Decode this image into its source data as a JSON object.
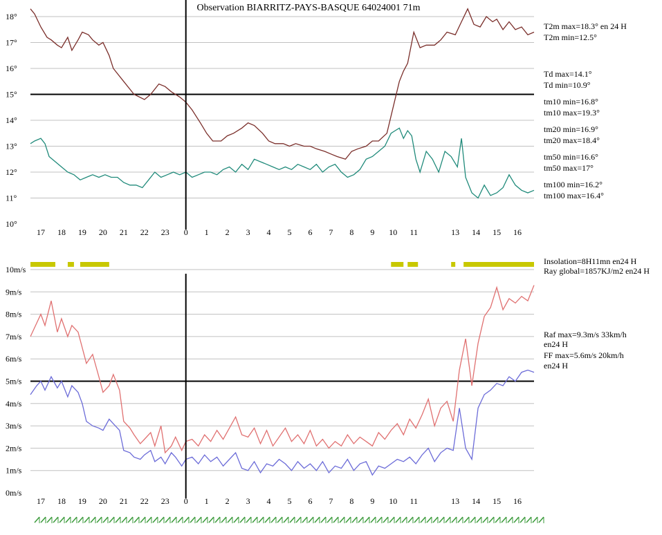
{
  "title": "Observation BIARRITZ-PAYS-BASQUE 64024001 71m",
  "colors": {
    "temperature": "#7a2e2a",
    "dewpoint": "#1f8a7a",
    "gust": "#e07070",
    "wind": "#6b6bd8",
    "insolation": "#c8c800",
    "grid": "#c0c0c0",
    "wind_barbs": "#3a9a3a"
  },
  "top_info": [
    "T2m max=18.3° en 24 H",
    "T2m min=12.5°",
    "Td max=14.1°",
    "Td min=10.9°",
    "tm10 min=16.8°",
    "tm10 max=19.3°",
    "tm20 min=16.9°",
    "tm20 max=18.4°",
    "tm50 min=16.6°",
    "tm50 max=17°",
    "tm100 min=16.2°",
    "tm100 max=16.4°"
  ],
  "bottom_info": [
    "Insolation=8H11mn en24 H",
    "Ray global=1857KJ/m2 en24 H",
    "Raf max=9.3m/s 33km/h",
    "en24 H",
    "FF max=5.6m/s 20km/h",
    "en24 H"
  ],
  "chart_data": [
    {
      "type": "line",
      "title": "Observation BIARRITZ-PAYS-BASQUE 64024001 71m",
      "y_ticks": [
        "10°",
        "11°",
        "12°",
        "13°",
        "14°",
        "15°",
        "16°",
        "17°",
        "18°"
      ],
      "ylim": [
        10,
        18
      ],
      "x_ticks": [
        "17",
        "18",
        "19",
        "20",
        "21",
        "22",
        "23",
        "0",
        "1",
        "2",
        "3",
        "4",
        "5",
        "6",
        "7",
        "8",
        "9",
        "10",
        "11",
        "13",
        "14",
        "15",
        "16"
      ],
      "x_tick_hours": [
        -7,
        -6,
        -5,
        -4,
        -3,
        -2,
        -1,
        0,
        1,
        2,
        3,
        4,
        5,
        6,
        7,
        8,
        9,
        10,
        11,
        13,
        14,
        15,
        16
      ],
      "x_range_hours": [
        -7.5,
        16.8
      ],
      "reference_line": 15,
      "series": [
        {
          "key": "temperature",
          "x": [
            -7.5,
            -7.3,
            -7.0,
            -6.7,
            -6.5,
            -6.2,
            -6.0,
            -5.7,
            -5.5,
            -5.2,
            -5.0,
            -4.7,
            -4.5,
            -4.2,
            -4.0,
            -3.7,
            -3.5,
            -3.0,
            -2.5,
            -2.0,
            -1.7,
            -1.3,
            -1.0,
            -0.7,
            -0.3,
            0.0,
            0.3,
            0.7,
            1.0,
            1.3,
            1.7,
            2.0,
            2.3,
            2.7,
            3.0,
            3.3,
            3.7,
            4.0,
            4.3,
            4.7,
            5.0,
            5.3,
            5.7,
            6.0,
            6.3,
            6.7,
            7.0,
            7.3,
            7.7,
            8.0,
            8.3,
            8.7,
            9.0,
            9.3,
            9.7,
            10.0,
            10.3,
            10.5,
            10.7,
            11.0,
            11.3,
            11.6,
            12.0,
            12.3,
            12.6,
            13.0,
            13.3,
            13.6,
            13.9,
            14.2,
            14.5,
            14.8,
            15.0,
            15.3,
            15.6,
            15.9,
            16.2,
            16.5,
            16.8
          ],
          "y": [
            18.3,
            18.1,
            17.6,
            17.2,
            17.1,
            16.9,
            16.8,
            17.2,
            16.7,
            17.1,
            17.4,
            17.3,
            17.1,
            16.9,
            17.0,
            16.5,
            16.0,
            15.5,
            15.0,
            14.8,
            15.0,
            15.4,
            15.3,
            15.1,
            14.9,
            14.7,
            14.4,
            13.9,
            13.5,
            13.2,
            13.2,
            13.4,
            13.5,
            13.7,
            13.9,
            13.8,
            13.5,
            13.2,
            13.1,
            13.1,
            13.0,
            13.1,
            13.0,
            13.0,
            12.9,
            12.8,
            12.7,
            12.6,
            12.5,
            12.8,
            12.9,
            13.0,
            13.2,
            13.2,
            13.5,
            14.5,
            15.5,
            15.9,
            16.2,
            17.4,
            16.8,
            16.9,
            16.9,
            17.1,
            17.4,
            17.3,
            17.8,
            18.3,
            17.7,
            17.6,
            18.0,
            17.8,
            17.9,
            17.5,
            17.8,
            17.5,
            17.6,
            17.3,
            17.4
          ]
        },
        {
          "key": "dewpoint",
          "x": [
            -7.5,
            -7.3,
            -7.0,
            -6.8,
            -6.6,
            -6.3,
            -6.0,
            -5.7,
            -5.4,
            -5.1,
            -4.8,
            -4.5,
            -4.2,
            -3.9,
            -3.6,
            -3.3,
            -3.0,
            -2.7,
            -2.4,
            -2.1,
            -1.8,
            -1.5,
            -1.2,
            -0.9,
            -0.6,
            -0.3,
            0.0,
            0.3,
            0.6,
            0.9,
            1.2,
            1.5,
            1.8,
            2.1,
            2.4,
            2.7,
            3.0,
            3.3,
            3.6,
            3.9,
            4.2,
            4.5,
            4.8,
            5.1,
            5.4,
            5.7,
            6.0,
            6.3,
            6.6,
            6.9,
            7.2,
            7.5,
            7.8,
            8.1,
            8.4,
            8.7,
            9.0,
            9.3,
            9.6,
            9.9,
            10.1,
            10.3,
            10.5,
            10.7,
            10.9,
            11.1,
            11.3,
            11.6,
            11.9,
            12.2,
            12.5,
            12.8,
            13.1,
            13.3,
            13.5,
            13.8,
            14.1,
            14.4,
            14.7,
            15.0,
            15.3,
            15.6,
            15.9,
            16.2,
            16.5,
            16.8
          ],
          "y": [
            13.1,
            13.2,
            13.3,
            13.1,
            12.6,
            12.4,
            12.2,
            12.0,
            11.9,
            11.7,
            11.8,
            11.9,
            11.8,
            11.9,
            11.8,
            11.8,
            11.6,
            11.5,
            11.5,
            11.4,
            11.7,
            12.0,
            11.8,
            11.9,
            12.0,
            11.9,
            12.0,
            11.8,
            11.9,
            12.0,
            12.0,
            11.9,
            12.1,
            12.2,
            12.0,
            12.3,
            12.1,
            12.5,
            12.4,
            12.3,
            12.2,
            12.1,
            12.2,
            12.1,
            12.3,
            12.2,
            12.1,
            12.3,
            12.0,
            12.2,
            12.3,
            12.0,
            11.8,
            11.9,
            12.1,
            12.5,
            12.6,
            12.8,
            13.0,
            13.5,
            13.6,
            13.7,
            13.3,
            13.6,
            13.4,
            12.5,
            12.0,
            12.8,
            12.5,
            12.0,
            12.8,
            12.6,
            12.2,
            13.3,
            11.8,
            11.2,
            11.0,
            11.5,
            11.1,
            11.2,
            11.4,
            11.9,
            11.5,
            11.3,
            11.2,
            11.3
          ]
        }
      ]
    },
    {
      "type": "line",
      "y_ticks": [
        "0m/s",
        "1m/s",
        "2m/s",
        "3m/s",
        "4m/s",
        "5m/s",
        "6m/s",
        "7m/s",
        "8m/s",
        "9m/s",
        "10m/s"
      ],
      "ylim": [
        0,
        10
      ],
      "x_ticks": [
        "17",
        "18",
        "19",
        "20",
        "21",
        "22",
        "23",
        "0",
        "1",
        "2",
        "3",
        "4",
        "5",
        "6",
        "7",
        "8",
        "9",
        "10",
        "11",
        "13",
        "14",
        "15",
        "16"
      ],
      "x_tick_hours": [
        -7,
        -6,
        -5,
        -4,
        -3,
        -2,
        -1,
        0,
        1,
        2,
        3,
        4,
        5,
        6,
        7,
        8,
        9,
        10,
        11,
        13,
        14,
        15,
        16
      ],
      "x_range_hours": [
        -7.5,
        16.8
      ],
      "reference_line": 5,
      "series": [
        {
          "key": "gust",
          "x": [
            -7.5,
            -7.2,
            -7.0,
            -6.8,
            -6.5,
            -6.2,
            -6.0,
            -5.7,
            -5.5,
            -5.2,
            -5.0,
            -4.8,
            -4.5,
            -4.2,
            -4.0,
            -3.7,
            -3.5,
            -3.2,
            -3.0,
            -2.7,
            -2.5,
            -2.2,
            -2.0,
            -1.7,
            -1.5,
            -1.2,
            -1.0,
            -0.7,
            -0.5,
            -0.2,
            0.0,
            0.3,
            0.6,
            0.9,
            1.2,
            1.5,
            1.8,
            2.1,
            2.4,
            2.7,
            3.0,
            3.3,
            3.6,
            3.9,
            4.2,
            4.5,
            4.8,
            5.1,
            5.4,
            5.7,
            6.0,
            6.3,
            6.6,
            6.9,
            7.2,
            7.5,
            7.8,
            8.1,
            8.4,
            8.7,
            9.0,
            9.3,
            9.6,
            9.9,
            10.2,
            10.5,
            10.8,
            11.1,
            11.4,
            11.7,
            12.0,
            12.3,
            12.6,
            12.9,
            13.2,
            13.5,
            13.8,
            14.1,
            14.4,
            14.7,
            15.0,
            15.3,
            15.6,
            15.9,
            16.2,
            16.5,
            16.8
          ],
          "y": [
            7.0,
            7.6,
            8.0,
            7.5,
            8.6,
            7.2,
            7.8,
            7.0,
            7.5,
            7.2,
            6.5,
            5.8,
            6.2,
            5.2,
            4.5,
            4.8,
            5.3,
            4.6,
            3.2,
            2.9,
            2.6,
            2.2,
            2.4,
            2.7,
            2.1,
            3.0,
            1.8,
            2.1,
            2.5,
            1.9,
            2.3,
            2.4,
            2.1,
            2.6,
            2.3,
            2.8,
            2.4,
            2.9,
            3.4,
            2.6,
            2.5,
            2.9,
            2.2,
            2.8,
            2.1,
            2.5,
            2.9,
            2.3,
            2.6,
            2.2,
            2.8,
            2.1,
            2.4,
            2.0,
            2.3,
            2.1,
            2.6,
            2.2,
            2.5,
            2.3,
            2.1,
            2.7,
            2.4,
            2.8,
            3.1,
            2.6,
            3.3,
            2.9,
            3.5,
            4.2,
            3.0,
            3.8,
            4.1,
            3.2,
            5.5,
            6.9,
            4.8,
            6.7,
            7.9,
            8.3,
            9.2,
            8.2,
            8.7,
            8.5,
            8.8,
            8.6,
            9.3
          ]
        },
        {
          "key": "wind",
          "x": [
            -7.5,
            -7.2,
            -7.0,
            -6.8,
            -6.5,
            -6.2,
            -6.0,
            -5.7,
            -5.5,
            -5.2,
            -5.0,
            -4.8,
            -4.5,
            -4.2,
            -4.0,
            -3.7,
            -3.5,
            -3.2,
            -3.0,
            -2.7,
            -2.5,
            -2.2,
            -2.0,
            -1.7,
            -1.5,
            -1.2,
            -1.0,
            -0.7,
            -0.5,
            -0.2,
            0.0,
            0.3,
            0.6,
            0.9,
            1.2,
            1.5,
            1.8,
            2.1,
            2.4,
            2.7,
            3.0,
            3.3,
            3.6,
            3.9,
            4.2,
            4.5,
            4.8,
            5.1,
            5.4,
            5.7,
            6.0,
            6.3,
            6.6,
            6.9,
            7.2,
            7.5,
            7.8,
            8.1,
            8.4,
            8.7,
            9.0,
            9.3,
            9.6,
            9.9,
            10.2,
            10.5,
            10.8,
            11.1,
            11.4,
            11.7,
            12.0,
            12.3,
            12.6,
            12.9,
            13.2,
            13.5,
            13.8,
            14.1,
            14.4,
            14.7,
            15.0,
            15.3,
            15.6,
            15.9,
            16.2,
            16.5,
            16.8
          ],
          "y": [
            4.4,
            4.8,
            5.0,
            4.6,
            5.2,
            4.7,
            5.0,
            4.3,
            4.8,
            4.5,
            4.0,
            3.2,
            3.0,
            2.9,
            2.8,
            3.3,
            3.1,
            2.8,
            1.9,
            1.8,
            1.6,
            1.5,
            1.7,
            1.9,
            1.4,
            1.6,
            1.3,
            1.8,
            1.6,
            1.2,
            1.5,
            1.6,
            1.3,
            1.7,
            1.4,
            1.6,
            1.2,
            1.5,
            1.8,
            1.1,
            1.0,
            1.4,
            0.9,
            1.3,
            1.2,
            1.5,
            1.3,
            1.0,
            1.4,
            1.1,
            1.3,
            1.0,
            1.4,
            0.9,
            1.2,
            1.1,
            1.5,
            1.0,
            1.3,
            1.4,
            0.8,
            1.2,
            1.1,
            1.3,
            1.5,
            1.4,
            1.6,
            1.3,
            1.7,
            2.0,
            1.4,
            1.8,
            2.0,
            1.9,
            3.8,
            2.0,
            1.5,
            3.8,
            4.4,
            4.6,
            4.9,
            4.8,
            5.2,
            5.0,
            5.4,
            5.5,
            5.4
          ]
        }
      ]
    }
  ],
  "insolation_segments": [
    {
      "from": -7.5,
      "to": -6.3
    },
    {
      "from": -5.7,
      "to": -5.4
    },
    {
      "from": -5.1,
      "to": -3.7
    },
    {
      "from": 9.9,
      "to": 10.5
    },
    {
      "from": 10.7,
      "to": 11.2
    },
    {
      "from": 12.8,
      "to": 13.0
    },
    {
      "from": 13.4,
      "to": 16.8
    }
  ]
}
